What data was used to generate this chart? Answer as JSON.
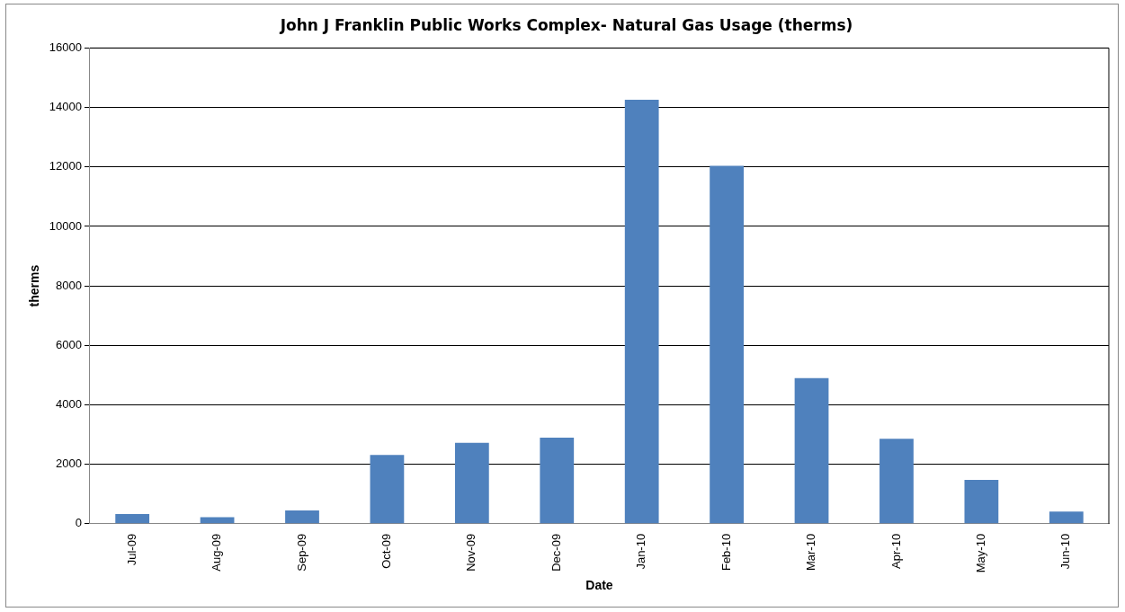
{
  "chart_data": {
    "type": "bar",
    "title": "John J Franklin Public Works Complex- Natural Gas Usage (therms)",
    "xlabel": "Date",
    "ylabel": "therms",
    "categories": [
      "Jul-09",
      "Aug-09",
      "Sep-09",
      "Oct-09",
      "Nov-09",
      "Dec-09",
      "Jan-10",
      "Feb-10",
      "Mar-10",
      "Apr-10",
      "May-10",
      "Jun-10"
    ],
    "values": [
      330,
      225,
      450,
      2315,
      2720,
      2900,
      14260,
      12040,
      4900,
      2860,
      1480,
      410
    ],
    "color": "#4f81bd",
    "ylim": [
      0,
      16000
    ],
    "yticks": [
      0,
      2000,
      4000,
      6000,
      8000,
      10000,
      12000,
      14000,
      16000
    ],
    "grid": "y",
    "legend": false
  }
}
